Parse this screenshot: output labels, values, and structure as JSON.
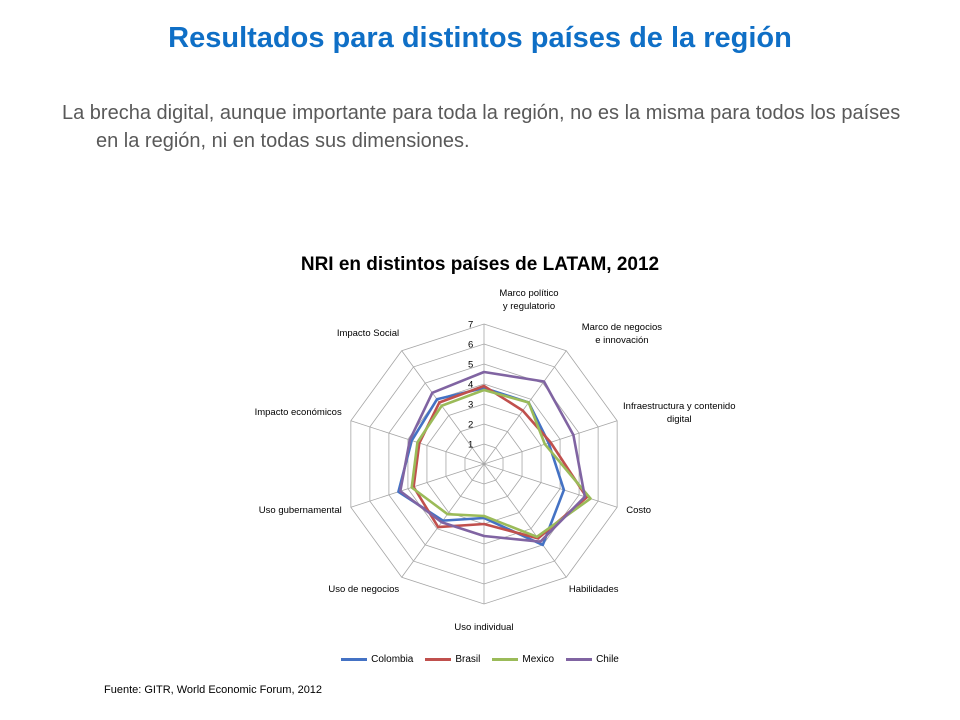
{
  "slide": {
    "title": "Resultados para distintos países de la región",
    "body": "La brecha digital, aunque importante para toda la región, no es la misma para todos los países en la región, ni en todas sus dimensiones.",
    "source": "Fuente: GITR, World Economic Forum, 2012"
  },
  "chart_data": {
    "type": "radar",
    "title": "NRI en distintos países de LATAM, 2012",
    "axes": [
      "Marco político y regulatorio",
      "Marco de negocios e innovación",
      "Infraestructura y contenido digital",
      "Costo",
      "Habilidades",
      "Uso individual",
      "Uso de negocios",
      "Uso gubernamental",
      "Impacto económicos",
      "Impacto Social"
    ],
    "rmin": 0,
    "rmax": 7,
    "ticks": [
      1,
      2,
      3,
      4,
      5,
      6,
      7
    ],
    "grid": true,
    "legend_position": "bottom",
    "series": [
      {
        "name": "Colombia",
        "color": "#4472c4",
        "values": [
          3.8,
          3.8,
          3.4,
          4.2,
          5.0,
          2.7,
          3.5,
          4.5,
          3.8,
          4.0
        ]
      },
      {
        "name": "Brasil",
        "color": "#c0504d",
        "values": [
          3.9,
          3.3,
          3.5,
          5.4,
          4.6,
          3.0,
          3.9,
          3.7,
          3.4,
          3.8
        ]
      },
      {
        "name": "Mexico",
        "color": "#9bbb59",
        "values": [
          3.7,
          3.8,
          3.2,
          5.6,
          4.5,
          2.6,
          3.1,
          3.8,
          3.5,
          3.6
        ]
      },
      {
        "name": "Chile",
        "color": "#8064a2",
        "values": [
          4.6,
          5.1,
          4.7,
          5.3,
          4.8,
          3.6,
          3.6,
          4.4,
          3.9,
          4.4
        ]
      }
    ]
  }
}
